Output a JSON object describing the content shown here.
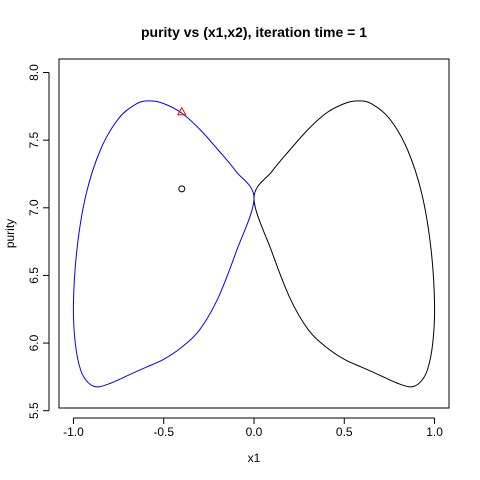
{
  "chart_data": {
    "type": "line",
    "title": "purity vs (x1,x2), iteration time = 1",
    "xlabel": "x1",
    "ylabel": "purity",
    "xlim": [
      -1.08,
      1.08
    ],
    "ylim": [
      5.52,
      8.1
    ],
    "x_ticks": [
      -1.0,
      -0.5,
      0.0,
      0.5,
      1.0
    ],
    "x_tick_labels": [
      "-1.0",
      "-0.5",
      "0.0",
      "0.5",
      "1.0"
    ],
    "y_ticks": [
      5.5,
      6.0,
      6.5,
      7.0,
      7.5,
      8.0
    ],
    "y_tick_labels": [
      "5.5",
      "6.0",
      "6.5",
      "7.0",
      "7.5",
      "8.0"
    ],
    "grid": false,
    "series": [
      {
        "color": "#000000",
        "style": "line",
        "points": [
          [
            0.0,
            7.07
          ],
          [
            0.1,
            7.27
          ],
          [
            0.2,
            7.43
          ],
          [
            0.3,
            7.58
          ],
          [
            0.4,
            7.7
          ],
          [
            0.5,
            7.77
          ],
          [
            0.577,
            7.79
          ],
          [
            0.65,
            7.77
          ],
          [
            0.75,
            7.66
          ],
          [
            0.85,
            7.43
          ],
          [
            0.93,
            7.1
          ],
          [
            0.98,
            6.7
          ],
          [
            1.0,
            6.29
          ],
          [
            0.99,
            6.0
          ],
          [
            0.96,
            5.8
          ],
          [
            0.92,
            5.71
          ],
          [
            0.87,
            5.676
          ],
          [
            0.8,
            5.7
          ],
          [
            0.7,
            5.76
          ],
          [
            0.6,
            5.82
          ],
          [
            0.5,
            5.88
          ],
          [
            0.4,
            5.97
          ],
          [
            0.3,
            6.1
          ],
          [
            0.2,
            6.33
          ],
          [
            0.1,
            6.67
          ],
          [
            0.0,
            7.07
          ]
        ]
      },
      {
        "color": "#0000FF",
        "style": "line",
        "points": [
          [
            0.0,
            7.07
          ],
          [
            -0.1,
            7.27
          ],
          [
            -0.2,
            7.43
          ],
          [
            -0.3,
            7.58
          ],
          [
            -0.4,
            7.7
          ],
          [
            -0.5,
            7.77
          ],
          [
            -0.577,
            7.79
          ],
          [
            -0.65,
            7.77
          ],
          [
            -0.75,
            7.66
          ],
          [
            -0.85,
            7.43
          ],
          [
            -0.93,
            7.1
          ],
          [
            -0.98,
            6.7
          ],
          [
            -1.0,
            6.29
          ],
          [
            -0.99,
            6.0
          ],
          [
            -0.96,
            5.8
          ],
          [
            -0.92,
            5.71
          ],
          [
            -0.87,
            5.676
          ],
          [
            -0.8,
            5.7
          ],
          [
            -0.7,
            5.76
          ],
          [
            -0.6,
            5.82
          ],
          [
            -0.5,
            5.88
          ],
          [
            -0.4,
            5.97
          ],
          [
            -0.3,
            6.1
          ],
          [
            -0.2,
            6.33
          ],
          [
            -0.1,
            6.67
          ],
          [
            0.0,
            7.07
          ]
        ]
      }
    ],
    "markers": [
      {
        "shape": "triangle",
        "color": "#FF0000",
        "x": -0.4,
        "y": 7.71
      },
      {
        "shape": "circle",
        "color": "#000000",
        "x": -0.4,
        "y": 7.14
      }
    ]
  }
}
